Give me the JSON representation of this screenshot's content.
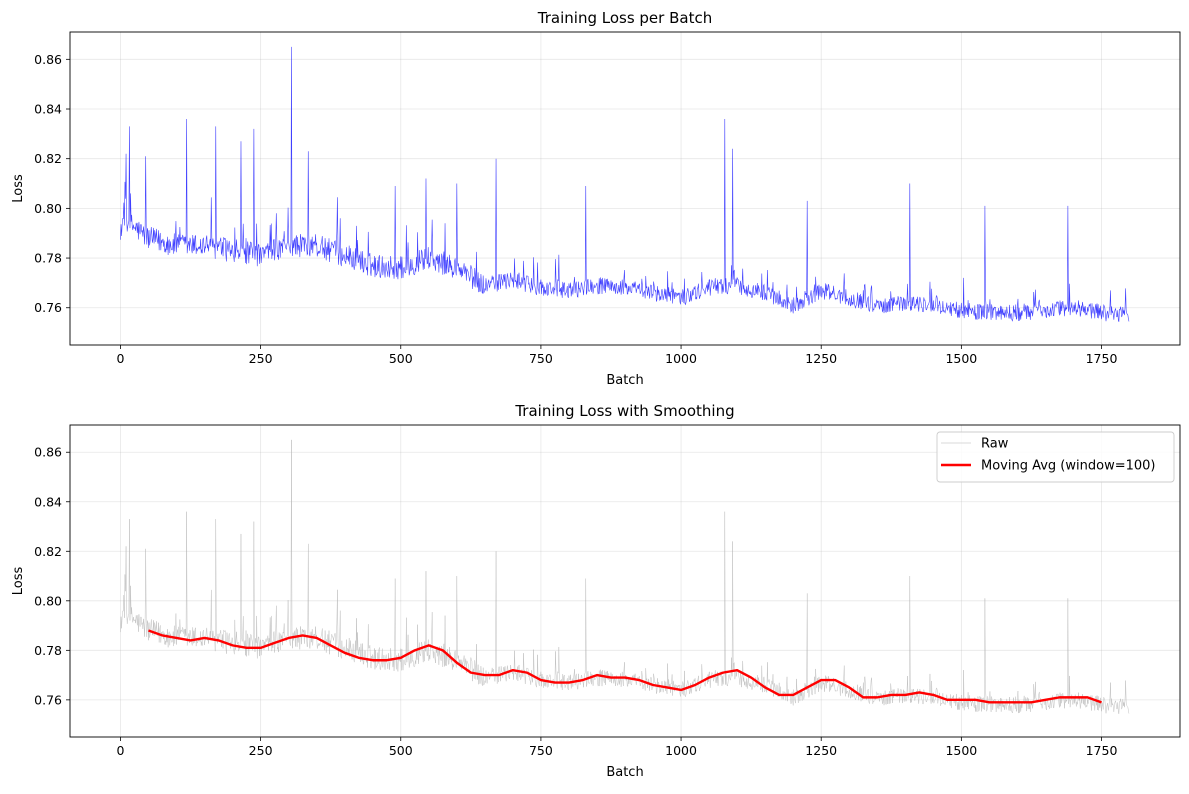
{
  "chart_data": [
    {
      "type": "line",
      "title": "Training Loss per Batch",
      "xlabel": "Batch",
      "ylabel": "Loss",
      "xlim": [
        -90,
        1890
      ],
      "ylim": [
        0.745,
        0.871
      ],
      "xticks": [
        0,
        250,
        500,
        750,
        1000,
        1250,
        1500,
        1750
      ],
      "yticks": [
        0.76,
        0.78,
        0.8,
        0.82,
        0.84,
        0.86
      ],
      "ytick_labels": [
        "0.76",
        "0.78",
        "0.80",
        "0.82",
        "0.84",
        "0.86"
      ],
      "grid": true,
      "series": [
        {
          "color": "#0000ff",
          "x_range": [
            0,
            1799
          ],
          "count": 1800,
          "trend_x": [
            0,
            10,
            50,
            100,
            150,
            200,
            250,
            300,
            350,
            400,
            450,
            500,
            550,
            600,
            650,
            700,
            750,
            800,
            850,
            900,
            950,
            1000,
            1050,
            1100,
            1150,
            1200,
            1250,
            1300,
            1350,
            1400,
            1450,
            1500,
            1550,
            1600,
            1650,
            1700,
            1750,
            1799
          ],
          "trend_y": [
            0.792,
            0.795,
            0.788,
            0.785,
            0.785,
            0.783,
            0.781,
            0.785,
            0.785,
            0.781,
            0.777,
            0.776,
            0.78,
            0.776,
            0.769,
            0.771,
            0.768,
            0.767,
            0.769,
            0.768,
            0.766,
            0.764,
            0.768,
            0.769,
            0.766,
            0.761,
            0.767,
            0.764,
            0.761,
            0.762,
            0.761,
            0.759,
            0.758,
            0.758,
            0.759,
            0.76,
            0.758,
            0.757
          ],
          "spikes": [
            {
              "x": 10,
              "y": 0.822
            },
            {
              "x": 16,
              "y": 0.833
            },
            {
              "x": 45,
              "y": 0.821
            },
            {
              "x": 118,
              "y": 0.836
            },
            {
              "x": 170,
              "y": 0.833
            },
            {
              "x": 215,
              "y": 0.827
            },
            {
              "x": 238,
              "y": 0.832
            },
            {
              "x": 305,
              "y": 0.865
            },
            {
              "x": 335,
              "y": 0.823
            },
            {
              "x": 490,
              "y": 0.809
            },
            {
              "x": 545,
              "y": 0.812
            },
            {
              "x": 600,
              "y": 0.81
            },
            {
              "x": 670,
              "y": 0.82
            },
            {
              "x": 830,
              "y": 0.809
            },
            {
              "x": 1078,
              "y": 0.836
            },
            {
              "x": 1092,
              "y": 0.824
            },
            {
              "x": 1225,
              "y": 0.803
            },
            {
              "x": 1408,
              "y": 0.81
            },
            {
              "x": 1542,
              "y": 0.801
            },
            {
              "x": 1690,
              "y": 0.801
            }
          ]
        }
      ]
    },
    {
      "type": "line",
      "title": "Training Loss with Smoothing",
      "xlabel": "Batch",
      "ylabel": "Loss",
      "xlim": [
        -90,
        1890
      ],
      "ylim": [
        0.745,
        0.871
      ],
      "xticks": [
        0,
        250,
        500,
        750,
        1000,
        1250,
        1500,
        1750
      ],
      "yticks": [
        0.76,
        0.78,
        0.8,
        0.82,
        0.84,
        0.86
      ],
      "ytick_labels": [
        "0.76",
        "0.78",
        "0.80",
        "0.82",
        "0.84",
        "0.86"
      ],
      "grid": true,
      "legend_position": "upper-right",
      "series": [
        {
          "name": "Raw",
          "color": "#b3b3b3",
          "source": "same raw loss as the top panel",
          "x_range": [
            0,
            1799
          ]
        },
        {
          "name": "Moving Avg (window=100)",
          "color": "#ff0000",
          "x": [
            50,
            75,
            100,
            125,
            150,
            175,
            200,
            225,
            250,
            275,
            300,
            325,
            350,
            375,
            400,
            425,
            450,
            475,
            500,
            525,
            550,
            575,
            600,
            625,
            650,
            675,
            700,
            725,
            750,
            775,
            800,
            825,
            850,
            875,
            900,
            925,
            950,
            975,
            1000,
            1025,
            1050,
            1075,
            1100,
            1125,
            1150,
            1175,
            1200,
            1225,
            1250,
            1275,
            1300,
            1325,
            1350,
            1375,
            1400,
            1425,
            1450,
            1475,
            1500,
            1525,
            1550,
            1575,
            1600,
            1625,
            1650,
            1675,
            1700,
            1725,
            1750
          ],
          "y": [
            0.788,
            0.786,
            0.785,
            0.784,
            0.785,
            0.784,
            0.782,
            0.781,
            0.781,
            0.783,
            0.785,
            0.786,
            0.785,
            0.782,
            0.779,
            0.777,
            0.776,
            0.776,
            0.777,
            0.78,
            0.782,
            0.78,
            0.775,
            0.771,
            0.77,
            0.77,
            0.772,
            0.771,
            0.768,
            0.767,
            0.767,
            0.768,
            0.77,
            0.769,
            0.769,
            0.768,
            0.766,
            0.765,
            0.764,
            0.766,
            0.769,
            0.771,
            0.772,
            0.769,
            0.765,
            0.762,
            0.762,
            0.765,
            0.768,
            0.768,
            0.765,
            0.761,
            0.761,
            0.762,
            0.762,
            0.763,
            0.762,
            0.76,
            0.76,
            0.76,
            0.759,
            0.759,
            0.759,
            0.759,
            0.76,
            0.761,
            0.761,
            0.761,
            0.759
          ]
        }
      ]
    }
  ]
}
